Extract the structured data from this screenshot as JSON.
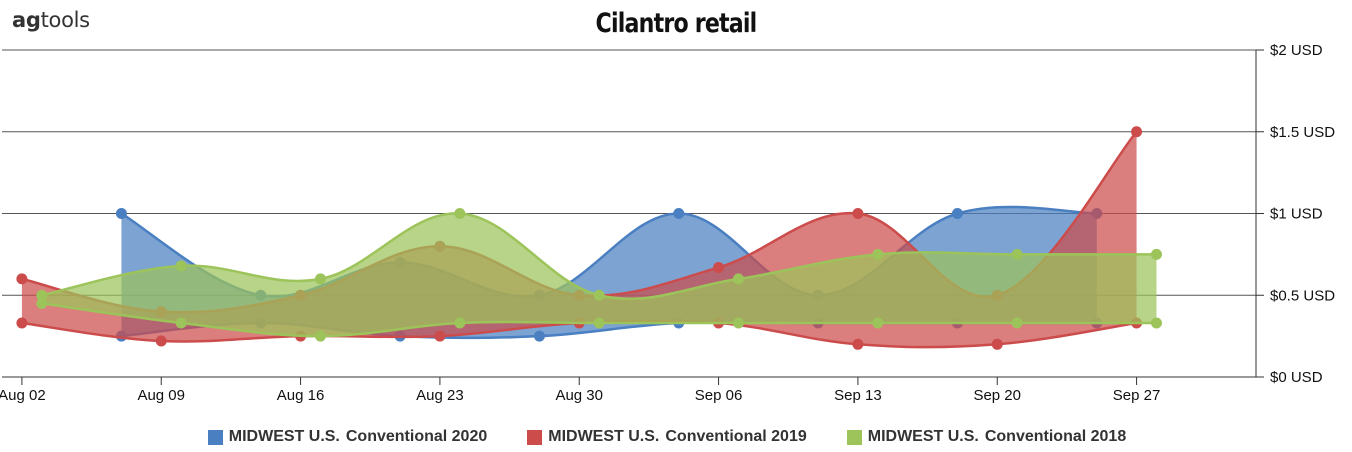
{
  "header": {
    "logo_bold": "ag",
    "logo_rest": "tools",
    "title": "Cilantro retail"
  },
  "chart_data": {
    "type": "area",
    "title": "Cilantro retail",
    "xlabel": "",
    "ylabel": "",
    "x_ticks": [
      "Aug 02",
      "Aug 09",
      "Aug 16",
      "Aug 23",
      "Aug 30",
      "Sep 06",
      "Sep 13",
      "Sep 20",
      "Sep 27"
    ],
    "y_ticks": [
      "$0 USD",
      "$0.5 USD",
      "$1 USD",
      "$1.5 USD",
      "$2 USD"
    ],
    "ylim": [
      0,
      2
    ],
    "x_range_days": [
      -1,
      62
    ],
    "y_axis_side": "right",
    "grid": true,
    "legend_position": "bottom",
    "series": [
      {
        "name": "MIDWEST U.S. Conventional 2020",
        "legend_region": "MIDWEST U.S.",
        "legend_type": "Conventional 2020",
        "color": "#4a7fc1",
        "high": [
          [
            5,
            1.0
          ],
          [
            12,
            0.5
          ],
          [
            19,
            0.7
          ],
          [
            26,
            0.5
          ],
          [
            33,
            1.0
          ],
          [
            40,
            0.5
          ],
          [
            47,
            1.0
          ],
          [
            54,
            1.0
          ]
        ],
        "low": [
          [
            5,
            0.25
          ],
          [
            12,
            0.33
          ],
          [
            19,
            0.25
          ],
          [
            26,
            0.25
          ],
          [
            33,
            0.33
          ],
          [
            40,
            0.33
          ],
          [
            47,
            0.33
          ],
          [
            54,
            0.33
          ]
        ]
      },
      {
        "name": "MIDWEST U.S. Conventional 2019",
        "legend_region": "MIDWEST U.S.",
        "legend_type": "Conventional 2019",
        "color": "#cc4c4c",
        "high": [
          [
            0,
            0.6
          ],
          [
            7,
            0.4
          ],
          [
            14,
            0.5
          ],
          [
            21,
            0.8
          ],
          [
            28,
            0.5
          ],
          [
            35,
            0.67
          ],
          [
            42,
            1.0
          ],
          [
            49,
            0.5
          ],
          [
            56,
            1.5
          ]
        ],
        "low": [
          [
            0,
            0.33
          ],
          [
            7,
            0.22
          ],
          [
            14,
            0.25
          ],
          [
            21,
            0.25
          ],
          [
            28,
            0.33
          ],
          [
            35,
            0.33
          ],
          [
            42,
            0.2
          ],
          [
            49,
            0.2
          ],
          [
            56,
            0.33
          ]
        ]
      },
      {
        "name": "MIDWEST U.S. Conventional 2018",
        "legend_region": "MIDWEST U.S.",
        "legend_type": "Conventional 2018",
        "color": "#9cc45a",
        "high": [
          [
            1,
            0.5
          ],
          [
            8,
            0.68
          ],
          [
            15,
            0.6
          ],
          [
            22,
            1.0
          ],
          [
            29,
            0.5
          ],
          [
            36,
            0.6
          ],
          [
            43,
            0.75
          ],
          [
            50,
            0.75
          ],
          [
            57,
            0.75
          ]
        ],
        "low": [
          [
            1,
            0.45
          ],
          [
            8,
            0.33
          ],
          [
            15,
            0.25
          ],
          [
            22,
            0.33
          ],
          [
            29,
            0.33
          ],
          [
            36,
            0.33
          ],
          [
            43,
            0.33
          ],
          [
            50,
            0.33
          ],
          [
            57,
            0.33
          ]
        ]
      }
    ]
  }
}
